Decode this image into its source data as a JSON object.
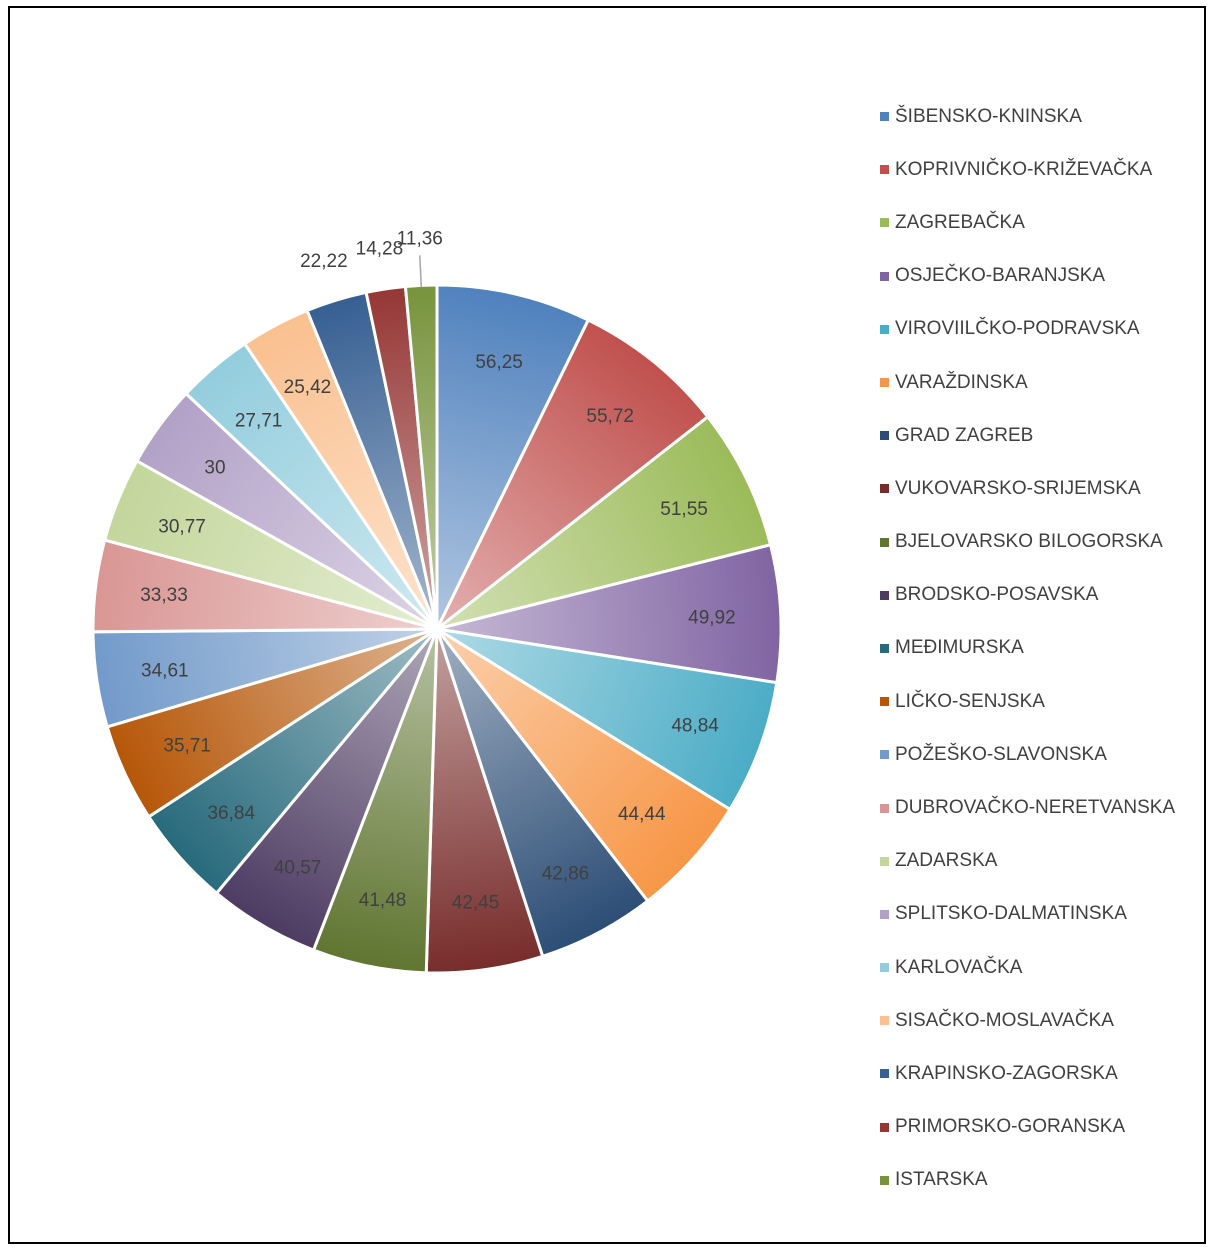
{
  "chart_data": {
    "type": "pie",
    "categories": [
      "ŠIBENSKO-KNINSKA",
      "KOPRIVNIČKO-KRIŽEVAČKA",
      "ZAGREBAČKA",
      "OSJEČKO-BARANJSKA",
      "VIROVIILČKO-PODRAVSKA",
      "VARAŽDINSKA",
      "GRAD ZAGREB",
      "VUKOVARSKO-SRIJEMSKA",
      "BJELOVARSKO BILOGORSKA",
      "BRODSKO-POSAVSKA",
      "MEĐIMURSKA",
      "LIČKO-SENJSKA",
      "POŽEŠKO-SLAVONSKA",
      "DUBROVAČKO-NERETVANSKA",
      "ZADARSKA",
      "SPLITSKO-DALMATINSKA",
      "KARLOVAČKA",
      "SISAČKO-MOSLAVAČKA",
      "KRAPINSKO-ZAGORSKA",
      "PRIMORSKO-GORANSKA",
      "ISTARSKA"
    ],
    "values": [
      56.25,
      55.72,
      51.55,
      49.92,
      48.84,
      44.44,
      42.86,
      42.45,
      41.48,
      40.57,
      36.84,
      35.71,
      34.61,
      33.33,
      30.77,
      30,
      27.71,
      25.42,
      22.22,
      14.28,
      11.36
    ],
    "data_labels": [
      "56,25",
      "55,72",
      "51,55",
      "49,92",
      "48,84",
      "44,44",
      "42,86",
      "42,45",
      "41,48",
      "40,57",
      "36,84",
      "35,71",
      "34,61",
      "33,33",
      "30,77",
      "30",
      "27,71",
      "25,42",
      "22,22",
      "14,28",
      "11,36"
    ],
    "colors": [
      "#4f81bd",
      "#c0504d",
      "#9bbb59",
      "#8064a2",
      "#4bacc6",
      "#f79646",
      "#2c4d75",
      "#772c2a",
      "#5f7530",
      "#4d3b62",
      "#276a7c",
      "#b65708",
      "#729aca",
      "#d99694",
      "#c3d69b",
      "#b2a1c7",
      "#93cddd",
      "#fac08f",
      "#365f92",
      "#953735",
      "#77933c"
    ],
    "legend_position": "right",
    "outside_labels": [
      "22,22",
      "14,28",
      "11,36"
    ]
  }
}
